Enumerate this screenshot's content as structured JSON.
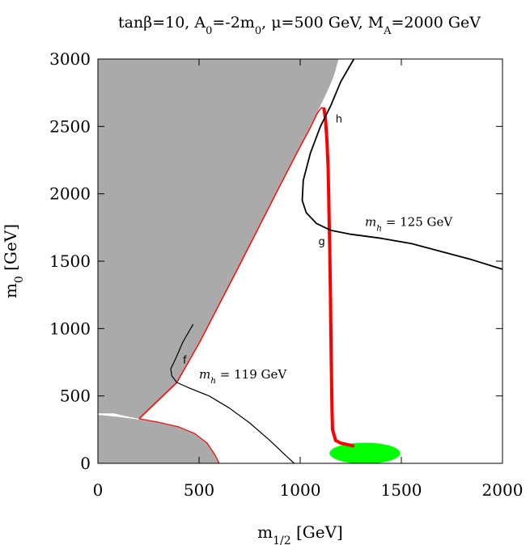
{
  "chart_data": {
    "type": "line",
    "title": {
      "parts": [
        "tanβ=10, A",
        "0",
        "=-2m",
        "0",
        ", μ=500 GeV, M",
        "A",
        "=2000 GeV"
      ],
      "sub_indices": [
        1,
        3,
        5
      ]
    },
    "xlabel": {
      "main": "m",
      "sub": "1/2",
      "rest": " [GeV]"
    },
    "ylabel": {
      "main": "m",
      "sub": "0",
      "rest": " [GeV]"
    },
    "xlim": [
      0,
      2000
    ],
    "ylim": [
      0,
      3000
    ],
    "xticks": [
      0,
      500,
      1000,
      1500,
      2000
    ],
    "yticks": [
      0,
      500,
      1000,
      1500,
      2000,
      2500,
      3000
    ],
    "grid": false,
    "colors": {
      "excluded": "#aaaaaa",
      "red_band": "#ff0000",
      "green_region": "#00ff00",
      "contour": "#000000"
    },
    "regions": [
      {
        "name": "excluded-gray",
        "color": "#aaaaaa",
        "points": [
          [
            0,
            0
          ],
          [
            0,
            3000
          ],
          [
            1190,
            3000
          ],
          [
            1165,
            2870
          ],
          [
            1140,
            2780
          ],
          [
            1080,
            2590
          ],
          [
            1000,
            2350
          ],
          [
            900,
            2060
          ],
          [
            700,
            1470
          ],
          [
            500,
            890
          ],
          [
            390,
            590
          ],
          [
            210,
            330
          ],
          [
            190,
            335
          ],
          [
            120,
            355
          ],
          [
            80,
            370
          ],
          [
            0,
            370
          ]
        ]
      },
      {
        "name": "excluded-gray-lower",
        "color": "#aaaaaa",
        "points": [
          [
            0,
            0
          ],
          [
            0,
            360
          ],
          [
            100,
            345
          ],
          [
            200,
            325
          ],
          [
            300,
            305
          ],
          [
            400,
            270
          ],
          [
            480,
            220
          ],
          [
            540,
            150
          ],
          [
            580,
            60
          ],
          [
            600,
            0
          ]
        ]
      },
      {
        "name": "green-region",
        "color": "#00ff00",
        "ellipse": {
          "cx": 1320,
          "cy": 75,
          "rx": 175,
          "ry": 78
        }
      }
    ],
    "series": [
      {
        "name": "red-band-upper",
        "color": "#ff0000",
        "width": 1.4,
        "points": [
          [
            205,
            335
          ],
          [
            390,
            600
          ],
          [
            500,
            890
          ],
          [
            700,
            1470
          ],
          [
            900,
            2060
          ],
          [
            1000,
            2350
          ],
          [
            1050,
            2490
          ],
          [
            1085,
            2600
          ],
          [
            1105,
            2640
          ],
          [
            1118,
            2630
          ]
        ]
      },
      {
        "name": "red-band-vertical",
        "color": "#ff0000",
        "width": 4,
        "points": [
          [
            1118,
            2630
          ],
          [
            1125,
            2550
          ],
          [
            1132,
            2400
          ],
          [
            1138,
            2200
          ],
          [
            1142,
            1900
          ],
          [
            1146,
            1600
          ],
          [
            1150,
            1200
          ],
          [
            1153,
            800
          ],
          [
            1157,
            400
          ],
          [
            1160,
            250
          ],
          [
            1175,
            170
          ],
          [
            1200,
            150
          ],
          [
            1260,
            130
          ]
        ]
      },
      {
        "name": "red-band-lower",
        "color": "#ff0000",
        "width": 1.2,
        "points": [
          [
            205,
            330
          ],
          [
            300,
            305
          ],
          [
            400,
            270
          ],
          [
            480,
            220
          ],
          [
            540,
            150
          ],
          [
            580,
            60
          ],
          [
            600,
            0
          ]
        ]
      },
      {
        "name": "m_h = 125 GeV",
        "color": "#000000",
        "width": 1.8,
        "points": [
          [
            1265,
            3000
          ],
          [
            1200,
            2830
          ],
          [
            1150,
            2650
          ],
          [
            1100,
            2500
          ],
          [
            1050,
            2300
          ],
          [
            1015,
            2100
          ],
          [
            1010,
            1950
          ],
          [
            1030,
            1860
          ],
          [
            1080,
            1780
          ],
          [
            1150,
            1730
          ],
          [
            1250,
            1700
          ],
          [
            1400,
            1670
          ],
          [
            1550,
            1630
          ],
          [
            1700,
            1570
          ],
          [
            1850,
            1510
          ],
          [
            2000,
            1440
          ]
        ]
      },
      {
        "name": "m_h = 119 GeV",
        "color": "#000000",
        "width": 1.2,
        "points": [
          [
            390,
            600
          ],
          [
            365,
            650
          ],
          [
            360,
            700
          ],
          [
            385,
            780
          ],
          [
            420,
            900
          ],
          [
            470,
            1030
          ]
        ]
      },
      {
        "name": "m_h = 119 GeV (lower)",
        "color": "#000000",
        "width": 1.2,
        "points": [
          [
            390,
            600
          ],
          [
            450,
            560
          ],
          [
            550,
            500
          ],
          [
            650,
            410
          ],
          [
            750,
            300
          ],
          [
            850,
            170
          ],
          [
            920,
            70
          ],
          [
            970,
            0
          ]
        ]
      }
    ],
    "annotations": [
      {
        "text": "h",
        "x": 1175,
        "y": 2530,
        "font": "sans",
        "size": 13
      },
      {
        "text": "g",
        "x": 1090,
        "y": 1620,
        "font": "sans",
        "size": 13
      },
      {
        "text": "f",
        "x": 420,
        "y": 740,
        "font": "sans",
        "size": 13
      },
      {
        "text": "m",
        "sub": "h",
        "rest": " = 119 GeV",
        "x": 500,
        "y": 630,
        "font": "serif",
        "size": 15
      },
      {
        "text": "m",
        "sub": "h",
        "rest": "  =  125  GeV",
        "x": 1320,
        "y": 1760,
        "font": "serif",
        "size": 15
      }
    ]
  }
}
